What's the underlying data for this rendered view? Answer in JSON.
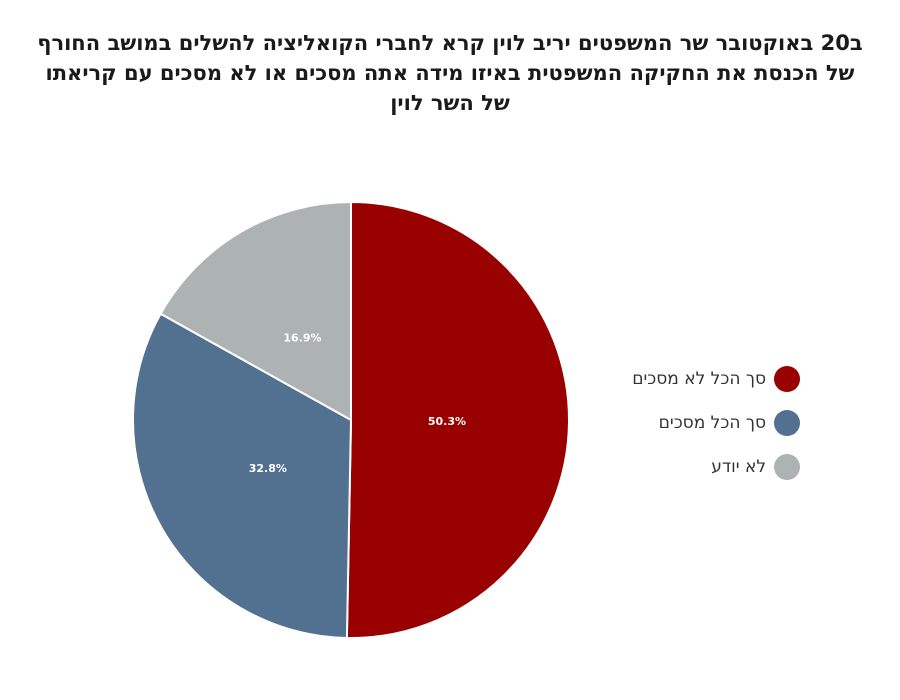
{
  "chart_data": {
    "type": "pie",
    "title_lines": [
      "ב20 באוקטובר שר המשפטים יריב לוין קרא לחברי הקואליציה להשלים במושב החורף",
      "של הכנסת את החקיקה המשפטית  באיזו מידה אתה מסכים או לא מסכים עם קריאתו",
      "של השר לוין"
    ],
    "slices": [
      {
        "label": "סך הכל לא מסכים",
        "value": 50.3,
        "display": "50.3%",
        "color": "#990000"
      },
      {
        "label": "סך הכל מסכים",
        "value": 32.8,
        "display": "32.8%",
        "color": "#52708f"
      },
      {
        "label": "לא יודע",
        "value": 16.9,
        "display": "16.9%",
        "color": "#adb3b3"
      }
    ],
    "legend_position": "right"
  }
}
